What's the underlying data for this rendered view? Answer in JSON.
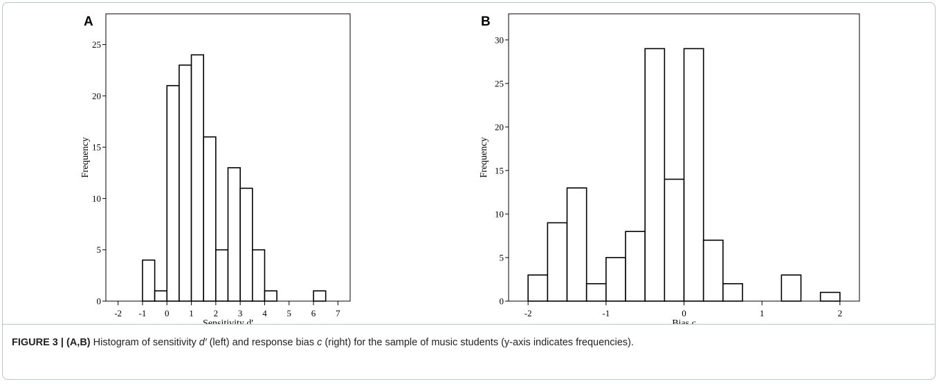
{
  "chart_data": [
    {
      "type": "bar",
      "panel": "A",
      "xlabel": "Sensitivity d'",
      "ylabel": "Frequency",
      "xlim": [
        -2.5,
        7.5
      ],
      "ylim": [
        0,
        28
      ],
      "xticks": [
        -2,
        -1,
        0,
        1,
        2,
        3,
        4,
        5,
        6,
        7
      ],
      "yticks": [
        0,
        5,
        10,
        15,
        20,
        25
      ],
      "bin_width": 0.5,
      "bins": [
        {
          "start": -1.0,
          "value": 4
        },
        {
          "start": -0.5,
          "value": 1
        },
        {
          "start": 0.0,
          "value": 21
        },
        {
          "start": 0.5,
          "value": 23
        },
        {
          "start": 1.0,
          "value": 24
        },
        {
          "start": 1.5,
          "value": 16
        },
        {
          "start": 2.0,
          "value": 5
        },
        {
          "start": 2.5,
          "value": 13
        },
        {
          "start": 3.0,
          "value": 11
        },
        {
          "start": 3.5,
          "value": 5
        },
        {
          "start": 4.0,
          "value": 1
        },
        {
          "start": 6.0,
          "value": 1
        }
      ]
    },
    {
      "type": "bar",
      "panel": "B",
      "xlabel": "Bias c",
      "ylabel": "Frequency",
      "xlim": [
        -2.25,
        2.25
      ],
      "ylim": [
        0,
        33
      ],
      "xticks": [
        -2,
        -1,
        0,
        1,
        2
      ],
      "yticks": [
        0,
        5,
        10,
        15,
        20,
        25,
        30
      ],
      "bin_width": 0.25,
      "bins": [
        {
          "start": -2.0,
          "value": 3
        },
        {
          "start": -1.75,
          "value": 9
        },
        {
          "start": -1.5,
          "value": 13
        },
        {
          "start": -1.25,
          "value": 2
        },
        {
          "start": -1.0,
          "value": 5
        },
        {
          "start": -0.75,
          "value": 8
        },
        {
          "start": -0.5,
          "value": 29
        },
        {
          "start": -0.25,
          "value": 14
        },
        {
          "start": 0.0,
          "value": 29
        },
        {
          "start": 0.25,
          "value": 7
        },
        {
          "start": 0.5,
          "value": 2
        },
        {
          "start": 1.25,
          "value": 3
        },
        {
          "start": 1.75,
          "value": 1
        }
      ]
    }
  ],
  "caption": {
    "label": "FIGURE 3 | (A,B)",
    "part1": " Histogram of sensitivity ",
    "dprime": "d′",
    "part2": " (left) and response bias ",
    "c": "c",
    "part3": " (right) for the sample of music students (y-axis indicates frequencies)."
  }
}
